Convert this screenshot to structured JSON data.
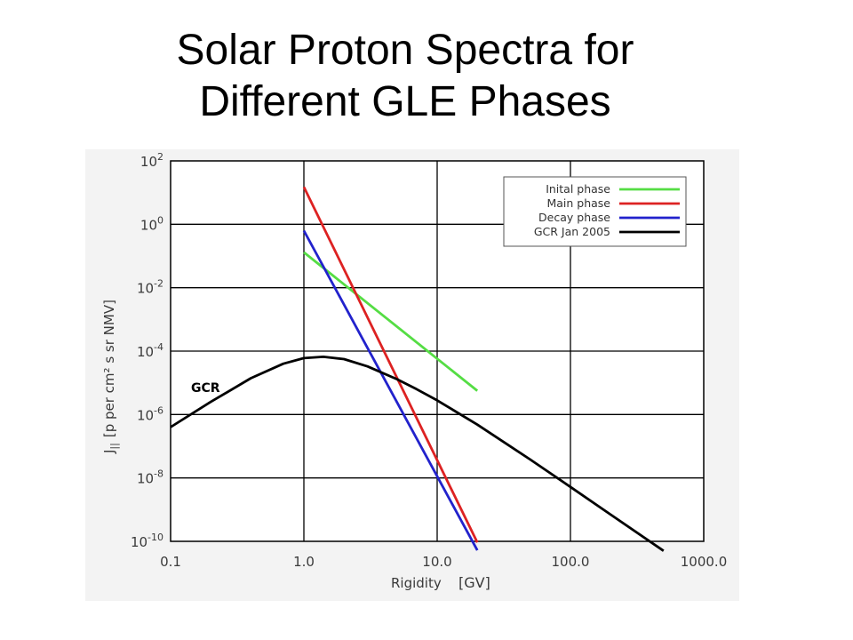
{
  "title_lines": [
    "Solar Proton Spectra for",
    "Different GLE Phases"
  ],
  "chart_data": {
    "type": "line",
    "title": "Solar Proton Spectra for Different GLE Phases",
    "xlabel": "Rigidity",
    "xunit": "[GV]",
    "ylabel_parts": {
      "main": "J",
      "sub": "||",
      "unit": "[p per cm² s sr NMV]"
    },
    "x_scale": "log",
    "y_scale": "log",
    "xlim": [
      0.1,
      1000.0
    ],
    "ylim": [
      1e-10,
      100
    ],
    "x_ticks": [
      0.1,
      1.0,
      10.0,
      100.0,
      1000.0
    ],
    "x_tick_labels": [
      "0.1",
      "1.0",
      "10.0",
      "100.0",
      "1000.0"
    ],
    "y_ticks": [
      1e-10,
      1e-08,
      1e-06,
      0.0001,
      0.01,
      1,
      100
    ],
    "y_tick_labels": [
      {
        "base": "10",
        "exp": "-10"
      },
      {
        "base": "10",
        "exp": "-8"
      },
      {
        "base": "10",
        "exp": "-6"
      },
      {
        "base": "10",
        "exp": "-4"
      },
      {
        "base": "10",
        "exp": "-2"
      },
      {
        "base": "10",
        "exp": "0"
      },
      {
        "base": "10",
        "exp": "2"
      }
    ],
    "grid": true,
    "legend_position": "top-right",
    "series": [
      {
        "name": "Inital phase",
        "color": "#55dd44",
        "x": [
          1.0,
          20.0
        ],
        "y": [
          0.13,
          5.6e-06
        ]
      },
      {
        "name": "Main phase",
        "color": "#dd2222",
        "x": [
          1.0,
          20.0
        ],
        "y": [
          15.0,
          9.2e-11
        ]
      },
      {
        "name": "Decay phase",
        "color": "#2222cc",
        "x": [
          1.0,
          20.0
        ],
        "y": [
          0.63,
          5.2e-11
        ]
      },
      {
        "name": "GCR Jan 2005",
        "color": "#000000",
        "x": [
          0.1,
          0.2,
          0.4,
          0.7,
          1.0,
          1.4,
          2.0,
          3.0,
          5.0,
          7.0,
          10.0,
          20.0,
          50.0,
          100.0,
          200.0,
          500.0
        ],
        "y": [
          4e-07,
          2.5e-06,
          1.4e-05,
          4e-05,
          6e-05,
          6.6e-05,
          5.6e-05,
          3.3e-05,
          1.3e-05,
          6.3e-06,
          2.8e-06,
          4.8e-07,
          3.8e-08,
          5.2e-09,
          7e-10,
          5e-11
        ]
      }
    ],
    "annotations": [
      {
        "text": "GCR"
      }
    ]
  }
}
